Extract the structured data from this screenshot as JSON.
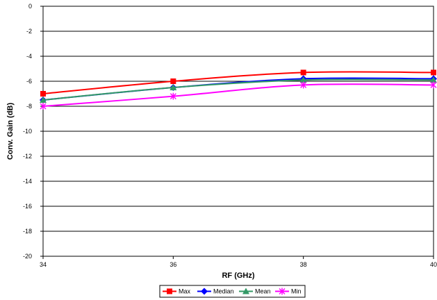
{
  "chart_data": {
    "type": "line",
    "title": "",
    "xlabel": "RF (GHz)",
    "ylabel": "Conv. Gain (dB)",
    "x": [
      34,
      36,
      38,
      40
    ],
    "xlim": [
      34,
      40
    ],
    "ylim": [
      -20,
      0
    ],
    "x_ticks": [
      "34",
      "36",
      "38",
      "40"
    ],
    "y_ticks": [
      "0",
      "-2",
      "-4",
      "-6",
      "-8",
      "-10",
      "-12",
      "-14",
      "-16",
      "-18",
      "-20"
    ],
    "grid": "horizontal",
    "legend_position": "bottom",
    "series": [
      {
        "name": "Max",
        "values": [
          -7.0,
          -6.0,
          -5.3,
          -5.3
        ],
        "color": "#ff0000",
        "marker": "square"
      },
      {
        "name": "Median",
        "values": [
          -7.5,
          -6.5,
          -5.8,
          -5.8
        ],
        "color": "#0000ff",
        "marker": "diamond"
      },
      {
        "name": "Mean",
        "values": [
          -7.5,
          -6.5,
          -5.9,
          -5.9
        ],
        "color": "#339966",
        "marker": "triangle"
      },
      {
        "name": "Min",
        "values": [
          -8.0,
          -7.2,
          -6.3,
          -6.3
        ],
        "color": "#ff00ff",
        "marker": "star"
      }
    ]
  }
}
